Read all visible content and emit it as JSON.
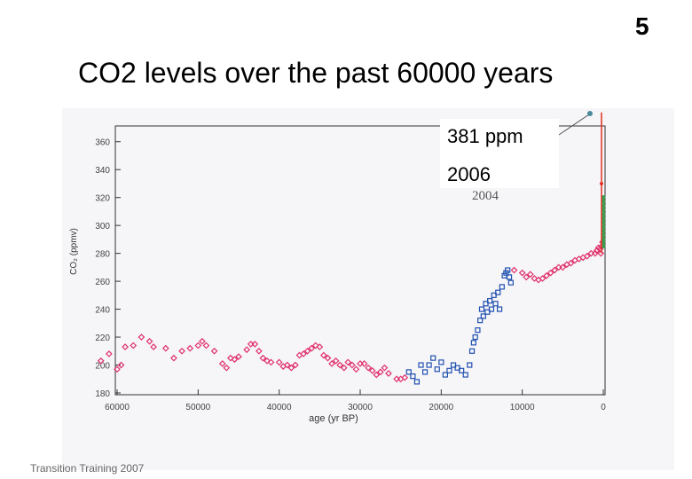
{
  "slide": {
    "number": "5",
    "title": "CO2 levels over the past 60000 years",
    "footer": "Transition Training 2007",
    "callout": {
      "value": "381 ppm",
      "year": "2006"
    }
  },
  "colors": {
    "background": "#ffffff",
    "scan_background": "#f6f5f8",
    "red_series": "#e0306a",
    "blue_series": "#2050b0",
    "green_series": "#3aa050",
    "modern_line": "#e03020",
    "axis": "#333333"
  },
  "chart_data": {
    "type": "scatter",
    "title": "",
    "xlabel": "age (yr BP)",
    "ylabel": "CO₂ (ppmv)",
    "xlim": [
      60000,
      0
    ],
    "ylim": [
      180,
      370
    ],
    "x_ticks": [
      60000,
      50000,
      40000,
      30000,
      20000,
      10000,
      0
    ],
    "x_tick_labels": [
      "60000",
      "50000",
      "40000",
      "30000",
      "20000",
      "10000",
      "0"
    ],
    "y_ticks": [
      180,
      200,
      220,
      240,
      260,
      280,
      300,
      320,
      340,
      360
    ],
    "y_tick_labels": [
      "180",
      "200",
      "220",
      "240",
      "260",
      "280",
      "300",
      "320",
      "340",
      "360"
    ],
    "annotation": "2004",
    "grid": false,
    "legend": "none",
    "series": [
      {
        "marker": "diamond",
        "points": [
          [
            62000,
            203
          ],
          [
            61000,
            208
          ],
          [
            60000,
            197
          ],
          [
            59500,
            200
          ],
          [
            59000,
            213
          ],
          [
            58000,
            214
          ],
          [
            57000,
            220
          ],
          [
            56000,
            217
          ],
          [
            55500,
            213
          ],
          [
            54000,
            212
          ],
          [
            53000,
            205
          ],
          [
            52000,
            210
          ],
          [
            51000,
            212
          ],
          [
            50000,
            214
          ],
          [
            49500,
            217
          ],
          [
            49000,
            214
          ],
          [
            48000,
            210
          ],
          [
            47000,
            201
          ],
          [
            46500,
            198
          ],
          [
            46000,
            205
          ],
          [
            45500,
            204
          ],
          [
            45000,
            206
          ],
          [
            44000,
            211
          ],
          [
            43500,
            215
          ],
          [
            43000,
            215
          ],
          [
            42500,
            210
          ],
          [
            42000,
            205
          ],
          [
            41500,
            203
          ],
          [
            41000,
            202
          ],
          [
            40000,
            202
          ],
          [
            39500,
            199
          ],
          [
            39000,
            200
          ],
          [
            38500,
            198
          ],
          [
            38000,
            200
          ],
          [
            37500,
            207
          ],
          [
            37000,
            208
          ],
          [
            36500,
            210
          ],
          [
            36000,
            212
          ],
          [
            35500,
            214
          ],
          [
            35000,
            213
          ],
          [
            34500,
            207
          ],
          [
            34000,
            205
          ],
          [
            33500,
            201
          ],
          [
            33000,
            203
          ],
          [
            32500,
            200
          ],
          [
            32000,
            198
          ],
          [
            31500,
            202
          ],
          [
            31000,
            200
          ],
          [
            30500,
            197
          ],
          [
            30000,
            201
          ],
          [
            29500,
            201
          ],
          [
            29000,
            198
          ],
          [
            28500,
            196
          ],
          [
            28000,
            193
          ],
          [
            27500,
            195
          ],
          [
            27000,
            198
          ],
          [
            26500,
            194
          ],
          [
            25500,
            190
          ],
          [
            25000,
            190
          ],
          [
            24500,
            191
          ],
          [
            11000,
            268
          ],
          [
            10000,
            266
          ],
          [
            9500,
            263
          ],
          [
            9000,
            265
          ],
          [
            8500,
            262
          ],
          [
            8000,
            261
          ],
          [
            7500,
            262
          ],
          [
            7000,
            264
          ],
          [
            6500,
            266
          ],
          [
            6000,
            268
          ],
          [
            5500,
            270
          ],
          [
            5000,
            270
          ],
          [
            4500,
            272
          ],
          [
            4000,
            273
          ],
          [
            3500,
            275
          ],
          [
            3000,
            276
          ],
          [
            2500,
            277
          ],
          [
            2000,
            278
          ],
          [
            1500,
            280
          ],
          [
            1000,
            280
          ],
          [
            800,
            282
          ],
          [
            600,
            284
          ],
          [
            400,
            283
          ],
          [
            300,
            280
          ],
          [
            200,
            285
          ],
          [
            100,
            288
          ]
        ]
      },
      {
        "marker": "square",
        "points": [
          [
            24000,
            195
          ],
          [
            23500,
            192
          ],
          [
            23000,
            188
          ],
          [
            22500,
            200
          ],
          [
            22000,
            195
          ],
          [
            21500,
            200
          ],
          [
            21000,
            205
          ],
          [
            20500,
            197
          ],
          [
            20000,
            202
          ],
          [
            19500,
            193
          ],
          [
            19000,
            196
          ],
          [
            18500,
            200
          ],
          [
            18000,
            198
          ],
          [
            17500,
            196
          ],
          [
            17000,
            193
          ],
          [
            16500,
            200
          ],
          [
            16200,
            210
          ],
          [
            16000,
            216
          ],
          [
            15800,
            220
          ],
          [
            15500,
            225
          ],
          [
            15200,
            232
          ],
          [
            15000,
            240
          ],
          [
            14800,
            235
          ],
          [
            14500,
            244
          ],
          [
            14300,
            238
          ],
          [
            14000,
            246
          ],
          [
            13800,
            240
          ],
          [
            13500,
            250
          ],
          [
            13300,
            244
          ],
          [
            13000,
            252
          ],
          [
            12800,
            240
          ],
          [
            12500,
            256
          ],
          [
            12200,
            264
          ],
          [
            12000,
            266
          ],
          [
            11800,
            268
          ],
          [
            11600,
            263
          ],
          [
            11400,
            259
          ]
        ]
      },
      {
        "marker": "dot",
        "points": [
          [
            0,
            285
          ],
          [
            0,
            288
          ],
          [
            0,
            290
          ],
          [
            0,
            293
          ],
          [
            0,
            296
          ],
          [
            0,
            299
          ],
          [
            0,
            302
          ],
          [
            0,
            305
          ],
          [
            0,
            308
          ],
          [
            0,
            311
          ],
          [
            0,
            314
          ],
          [
            0,
            317
          ],
          [
            0,
            320
          ]
        ]
      }
    ],
    "modern_rise": {
      "x": 0,
      "from": 280,
      "to": 381
    }
  }
}
